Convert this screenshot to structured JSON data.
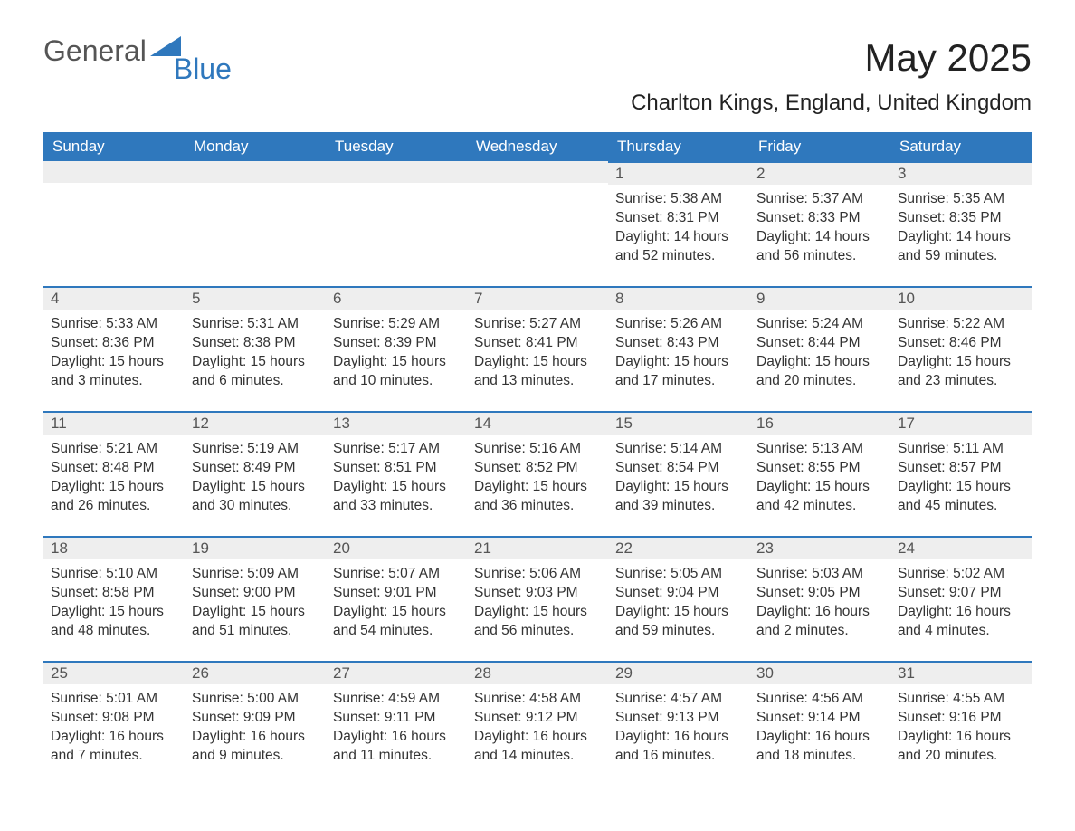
{
  "brand": {
    "word1": "General",
    "word2": "Blue",
    "accent_color": "#2f78bd"
  },
  "title": "May 2025",
  "location": "Charlton Kings, England, United Kingdom",
  "weekdays": [
    "Sunday",
    "Monday",
    "Tuesday",
    "Wednesday",
    "Thursday",
    "Friday",
    "Saturday"
  ],
  "labels": {
    "sunrise": "Sunrise:",
    "sunset": "Sunset:"
  },
  "colors": {
    "header_bg": "#2f78bd",
    "header_text": "#ffffff",
    "dayhead_bg": "#eeeeee",
    "row_border": "#2f78bd",
    "body_text": "#333333"
  },
  "weeks": [
    [
      {
        "day": "",
        "empty": true
      },
      {
        "day": "",
        "empty": true
      },
      {
        "day": "",
        "empty": true
      },
      {
        "day": "",
        "empty": true
      },
      {
        "day": "1",
        "sunrise": "5:38 AM",
        "sunset": "8:31 PM",
        "daylight": "Daylight: 14 hours and 52 minutes."
      },
      {
        "day": "2",
        "sunrise": "5:37 AM",
        "sunset": "8:33 PM",
        "daylight": "Daylight: 14 hours and 56 minutes."
      },
      {
        "day": "3",
        "sunrise": "5:35 AM",
        "sunset": "8:35 PM",
        "daylight": "Daylight: 14 hours and 59 minutes."
      }
    ],
    [
      {
        "day": "4",
        "sunrise": "5:33 AM",
        "sunset": "8:36 PM",
        "daylight": "Daylight: 15 hours and 3 minutes."
      },
      {
        "day": "5",
        "sunrise": "5:31 AM",
        "sunset": "8:38 PM",
        "daylight": "Daylight: 15 hours and 6 minutes."
      },
      {
        "day": "6",
        "sunrise": "5:29 AM",
        "sunset": "8:39 PM",
        "daylight": "Daylight: 15 hours and 10 minutes."
      },
      {
        "day": "7",
        "sunrise": "5:27 AM",
        "sunset": "8:41 PM",
        "daylight": "Daylight: 15 hours and 13 minutes."
      },
      {
        "day": "8",
        "sunrise": "5:26 AM",
        "sunset": "8:43 PM",
        "daylight": "Daylight: 15 hours and 17 minutes."
      },
      {
        "day": "9",
        "sunrise": "5:24 AM",
        "sunset": "8:44 PM",
        "daylight": "Daylight: 15 hours and 20 minutes."
      },
      {
        "day": "10",
        "sunrise": "5:22 AM",
        "sunset": "8:46 PM",
        "daylight": "Daylight: 15 hours and 23 minutes."
      }
    ],
    [
      {
        "day": "11",
        "sunrise": "5:21 AM",
        "sunset": "8:48 PM",
        "daylight": "Daylight: 15 hours and 26 minutes."
      },
      {
        "day": "12",
        "sunrise": "5:19 AM",
        "sunset": "8:49 PM",
        "daylight": "Daylight: 15 hours and 30 minutes."
      },
      {
        "day": "13",
        "sunrise": "5:17 AM",
        "sunset": "8:51 PM",
        "daylight": "Daylight: 15 hours and 33 minutes."
      },
      {
        "day": "14",
        "sunrise": "5:16 AM",
        "sunset": "8:52 PM",
        "daylight": "Daylight: 15 hours and 36 minutes."
      },
      {
        "day": "15",
        "sunrise": "5:14 AM",
        "sunset": "8:54 PM",
        "daylight": "Daylight: 15 hours and 39 minutes."
      },
      {
        "day": "16",
        "sunrise": "5:13 AM",
        "sunset": "8:55 PM",
        "daylight": "Daylight: 15 hours and 42 minutes."
      },
      {
        "day": "17",
        "sunrise": "5:11 AM",
        "sunset": "8:57 PM",
        "daylight": "Daylight: 15 hours and 45 minutes."
      }
    ],
    [
      {
        "day": "18",
        "sunrise": "5:10 AM",
        "sunset": "8:58 PM",
        "daylight": "Daylight: 15 hours and 48 minutes."
      },
      {
        "day": "19",
        "sunrise": "5:09 AM",
        "sunset": "9:00 PM",
        "daylight": "Daylight: 15 hours and 51 minutes."
      },
      {
        "day": "20",
        "sunrise": "5:07 AM",
        "sunset": "9:01 PM",
        "daylight": "Daylight: 15 hours and 54 minutes."
      },
      {
        "day": "21",
        "sunrise": "5:06 AM",
        "sunset": "9:03 PM",
        "daylight": "Daylight: 15 hours and 56 minutes."
      },
      {
        "day": "22",
        "sunrise": "5:05 AM",
        "sunset": "9:04 PM",
        "daylight": "Daylight: 15 hours and 59 minutes."
      },
      {
        "day": "23",
        "sunrise": "5:03 AM",
        "sunset": "9:05 PM",
        "daylight": "Daylight: 16 hours and 2 minutes."
      },
      {
        "day": "24",
        "sunrise": "5:02 AM",
        "sunset": "9:07 PM",
        "daylight": "Daylight: 16 hours and 4 minutes."
      }
    ],
    [
      {
        "day": "25",
        "sunrise": "5:01 AM",
        "sunset": "9:08 PM",
        "daylight": "Daylight: 16 hours and 7 minutes."
      },
      {
        "day": "26",
        "sunrise": "5:00 AM",
        "sunset": "9:09 PM",
        "daylight": "Daylight: 16 hours and 9 minutes."
      },
      {
        "day": "27",
        "sunrise": "4:59 AM",
        "sunset": "9:11 PM",
        "daylight": "Daylight: 16 hours and 11 minutes."
      },
      {
        "day": "28",
        "sunrise": "4:58 AM",
        "sunset": "9:12 PM",
        "daylight": "Daylight: 16 hours and 14 minutes."
      },
      {
        "day": "29",
        "sunrise": "4:57 AM",
        "sunset": "9:13 PM",
        "daylight": "Daylight: 16 hours and 16 minutes."
      },
      {
        "day": "30",
        "sunrise": "4:56 AM",
        "sunset": "9:14 PM",
        "daylight": "Daylight: 16 hours and 18 minutes."
      },
      {
        "day": "31",
        "sunrise": "4:55 AM",
        "sunset": "9:16 PM",
        "daylight": "Daylight: 16 hours and 20 minutes."
      }
    ]
  ]
}
